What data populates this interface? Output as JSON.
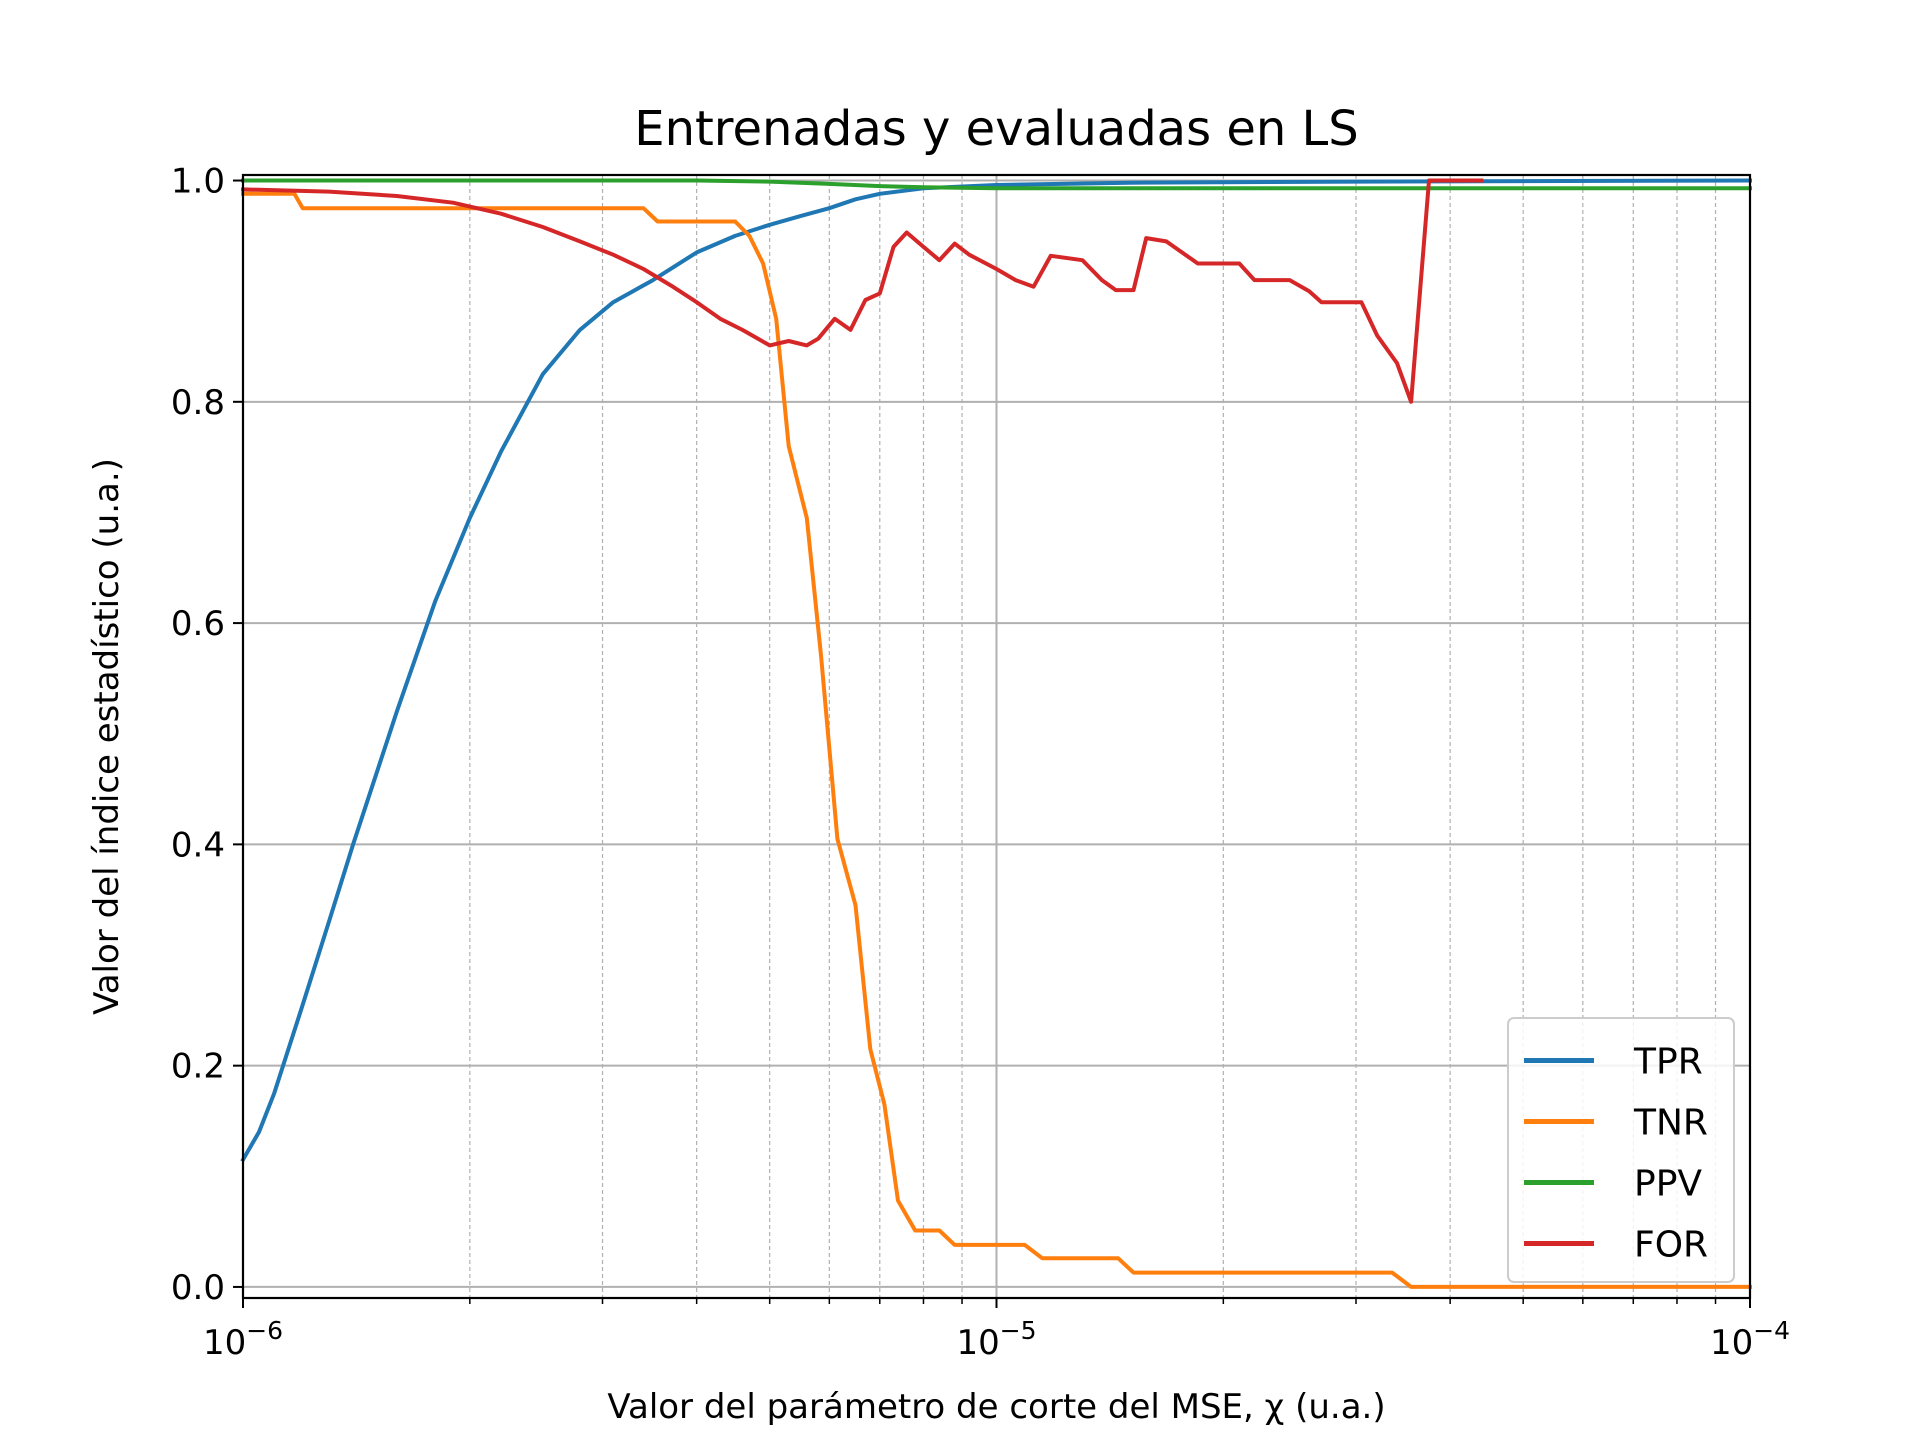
{
  "chart_data": {
    "type": "line",
    "title": "Entrenadas y evaluadas en LS",
    "xlabel": "Valor del parámetro de corte del MSE, χ (u.a.)",
    "ylabel": "Valor del índice estadístico (u.a.)",
    "xscale": "log",
    "xlim": [
      1e-06,
      0.0001
    ],
    "ylim": [
      -0.01,
      1.005
    ],
    "xticks": [
      {
        "value": 1e-06,
        "base": "10",
        "exp": "−6"
      },
      {
        "value": 1e-05,
        "base": "10",
        "exp": "−5"
      },
      {
        "value": 0.0001,
        "base": "10",
        "exp": "−4"
      }
    ],
    "yticks": [
      {
        "value": 0.0,
        "label": "0.0"
      },
      {
        "value": 0.2,
        "label": "0.2"
      },
      {
        "value": 0.4,
        "label": "0.4"
      },
      {
        "value": 0.6,
        "label": "0.6"
      },
      {
        "value": 0.8,
        "label": "0.8"
      },
      {
        "value": 1.0,
        "label": "1.0"
      }
    ],
    "grid": {
      "major": true,
      "minor_x": true
    },
    "legend": "lower-right",
    "series": [
      {
        "name": "TPR",
        "color": "#1f77b4",
        "points": [
          [
            1e-06,
            0.115
          ],
          [
            1.05e-06,
            0.14
          ],
          [
            1.1e-06,
            0.175
          ],
          [
            1.2e-06,
            0.255
          ],
          [
            1.3e-06,
            0.33
          ],
          [
            1.4e-06,
            0.4
          ],
          [
            1.6e-06,
            0.52
          ],
          [
            1.8e-06,
            0.62
          ],
          [
            2e-06,
            0.695
          ],
          [
            2.2e-06,
            0.755
          ],
          [
            2.5e-06,
            0.825
          ],
          [
            2.8e-06,
            0.865
          ],
          [
            3.1e-06,
            0.89
          ],
          [
            3.5e-06,
            0.91
          ],
          [
            4e-06,
            0.935
          ],
          [
            4.5e-06,
            0.95
          ],
          [
            5e-06,
            0.96
          ],
          [
            5.5e-06,
            0.968
          ],
          [
            6e-06,
            0.975
          ],
          [
            6.5e-06,
            0.983
          ],
          [
            7e-06,
            0.988
          ],
          [
            8e-06,
            0.993
          ],
          [
            1e-05,
            0.996
          ],
          [
            1.5e-05,
            0.998
          ],
          [
            3e-05,
            0.999
          ],
          [
            0.0001,
            1.0
          ]
        ]
      },
      {
        "name": "TNR",
        "color": "#ff7f0e",
        "points": [
          [
            1e-06,
            0.988
          ],
          [
            1.17e-06,
            0.988
          ],
          [
            1.2e-06,
            0.975
          ],
          [
            3.4e-06,
            0.975
          ],
          [
            3.55e-06,
            0.963
          ],
          [
            4.5e-06,
            0.963
          ],
          [
            4.7e-06,
            0.95
          ],
          [
            4.9e-06,
            0.925
          ],
          [
            5.1e-06,
            0.875
          ],
          [
            5.3e-06,
            0.76
          ],
          [
            5.6e-06,
            0.695
          ],
          [
            5.85e-06,
            0.57
          ],
          [
            6.15e-06,
            0.405
          ],
          [
            6.5e-06,
            0.345
          ],
          [
            6.8e-06,
            0.215
          ],
          [
            7.1e-06,
            0.165
          ],
          [
            7.4e-06,
            0.078
          ],
          [
            7.8e-06,
            0.051
          ],
          [
            8.4e-06,
            0.051
          ],
          [
            8.8e-06,
            0.038
          ],
          [
            1.09e-05,
            0.038
          ],
          [
            1.15e-05,
            0.026
          ],
          [
            1.45e-05,
            0.026
          ],
          [
            1.52e-05,
            0.013
          ],
          [
            3.35e-05,
            0.013
          ],
          [
            3.55e-05,
            0.0
          ],
          [
            0.0001,
            0.0
          ]
        ]
      },
      {
        "name": "PPV",
        "color": "#2ca02c",
        "points": [
          [
            1e-06,
            1.0
          ],
          [
            2e-06,
            1.0
          ],
          [
            4e-06,
            1.0
          ],
          [
            5e-06,
            0.999
          ],
          [
            6e-06,
            0.997
          ],
          [
            7e-06,
            0.995
          ],
          [
            8e-06,
            0.994
          ],
          [
            1e-05,
            0.993
          ],
          [
            0.0001,
            0.993
          ]
        ]
      },
      {
        "name": "FOR",
        "color": "#d62728",
        "points": [
          [
            1e-06,
            0.992
          ],
          [
            1.3e-06,
            0.99
          ],
          [
            1.6e-06,
            0.986
          ],
          [
            1.9e-06,
            0.98
          ],
          [
            2.2e-06,
            0.97
          ],
          [
            2.5e-06,
            0.958
          ],
          [
            2.8e-06,
            0.945
          ],
          [
            3.1e-06,
            0.933
          ],
          [
            3.4e-06,
            0.92
          ],
          [
            3.7e-06,
            0.905
          ],
          [
            4e-06,
            0.89
          ],
          [
            4.3e-06,
            0.875
          ],
          [
            4.6e-06,
            0.865
          ],
          [
            5e-06,
            0.851
          ],
          [
            5.3e-06,
            0.855
          ],
          [
            5.6e-06,
            0.851
          ],
          [
            5.8e-06,
            0.857
          ],
          [
            6.1e-06,
            0.875
          ],
          [
            6.4e-06,
            0.865
          ],
          [
            6.7e-06,
            0.892
          ],
          [
            7e-06,
            0.898
          ],
          [
            7.3e-06,
            0.94
          ],
          [
            7.6e-06,
            0.953
          ],
          [
            8e-06,
            0.94
          ],
          [
            8.4e-06,
            0.928
          ],
          [
            8.8e-06,
            0.943
          ],
          [
            9.2e-06,
            0.933
          ],
          [
            1e-05,
            0.92
          ],
          [
            1.06e-05,
            0.91
          ],
          [
            1.12e-05,
            0.904
          ],
          [
            1.18e-05,
            0.932
          ],
          [
            1.3e-05,
            0.928
          ],
          [
            1.38e-05,
            0.91
          ],
          [
            1.44e-05,
            0.901
          ],
          [
            1.52e-05,
            0.901
          ],
          [
            1.58e-05,
            0.948
          ],
          [
            1.68e-05,
            0.945
          ],
          [
            1.85e-05,
            0.925
          ],
          [
            2.1e-05,
            0.925
          ],
          [
            2.2e-05,
            0.91
          ],
          [
            2.45e-05,
            0.91
          ],
          [
            2.6e-05,
            0.9
          ],
          [
            2.7e-05,
            0.89
          ],
          [
            3.05e-05,
            0.89
          ],
          [
            3.2e-05,
            0.86
          ],
          [
            3.4e-05,
            0.835
          ],
          [
            3.55e-05,
            0.8
          ],
          [
            3.75e-05,
            1.0
          ],
          [
            4.4e-05,
            1.0
          ]
        ]
      }
    ]
  }
}
